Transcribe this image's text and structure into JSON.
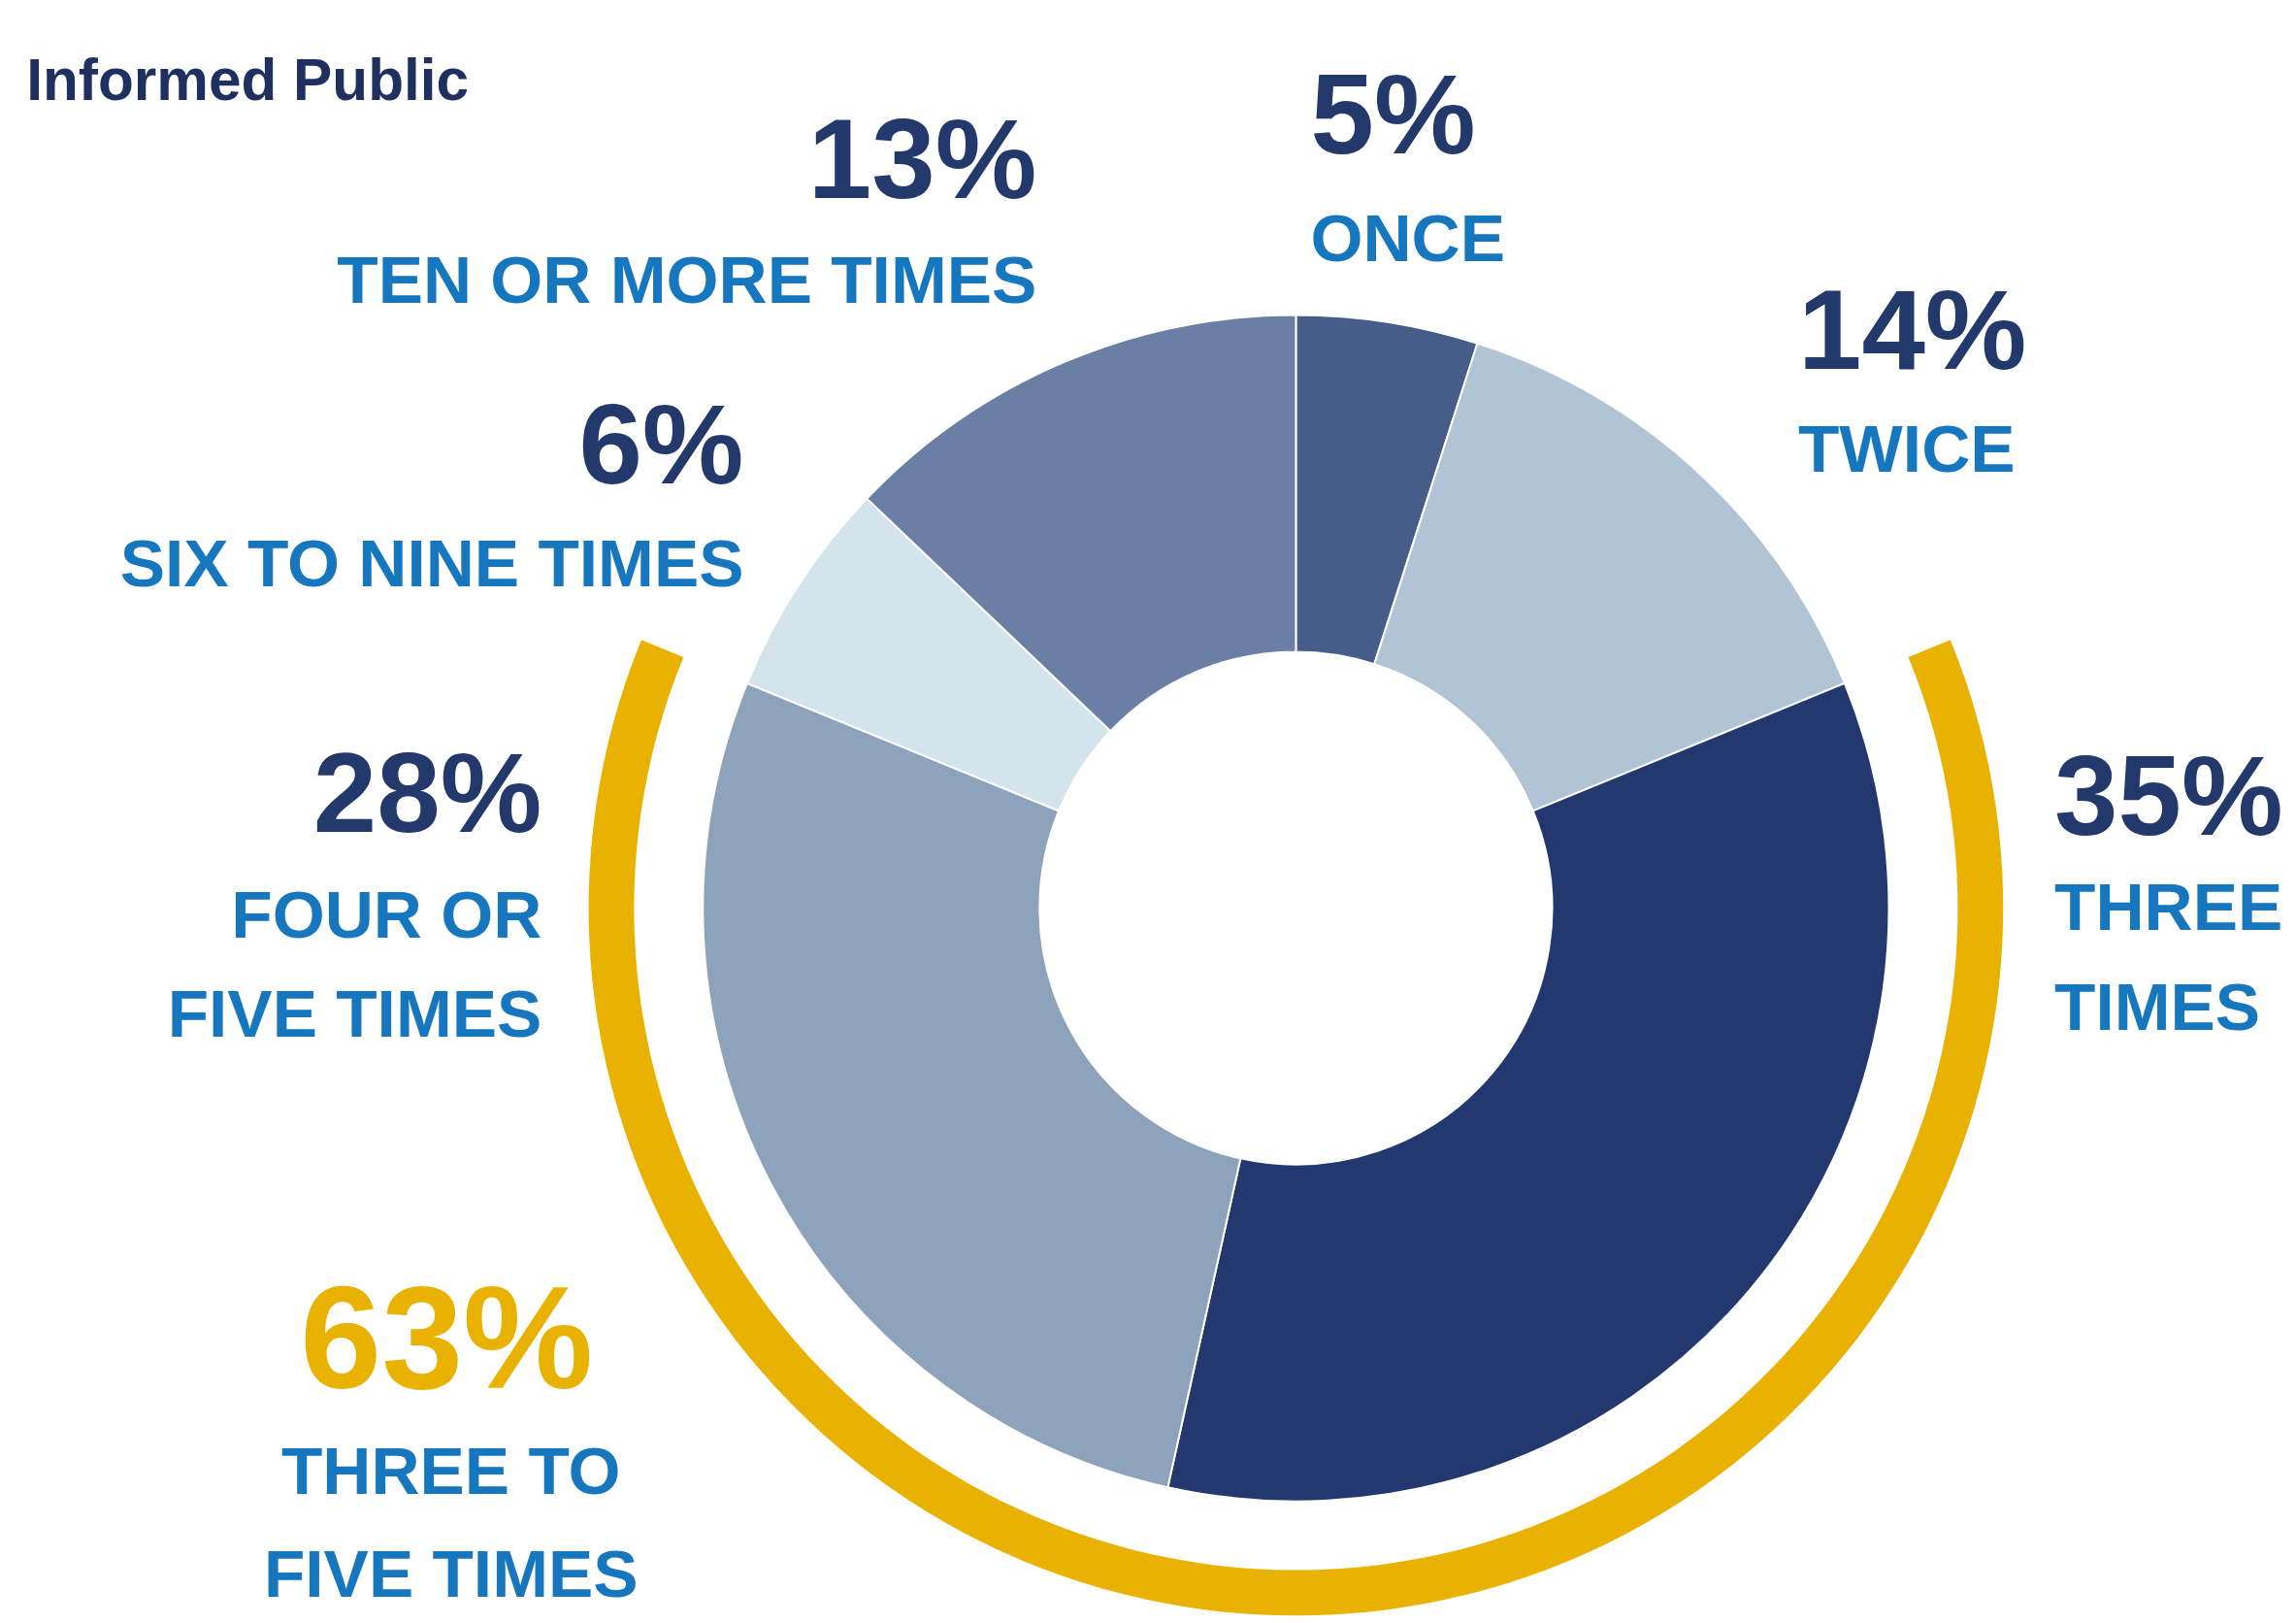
{
  "chart_data": {
    "type": "donut",
    "title": "Informed Public",
    "categories": [
      "ONCE",
      "TWICE",
      "THREE TIMES",
      "FOUR OR FIVE TIMES",
      "SIX TO NINE TIMES",
      "TEN OR MORE TIMES"
    ],
    "values": [
      5,
      14,
      35,
      28,
      6,
      13
    ],
    "value_labels": [
      "5%",
      "14%",
      "35%",
      "28%",
      "6%",
      "13%"
    ],
    "colors": [
      "#465d8a",
      "#b0c4d6",
      "#22386f",
      "#8da2bb",
      "#d4e4ed",
      "#6a7fa3"
    ],
    "annotations": [
      "63%",
      "THREE TO FIVE TIMES"
    ]
  }
}
